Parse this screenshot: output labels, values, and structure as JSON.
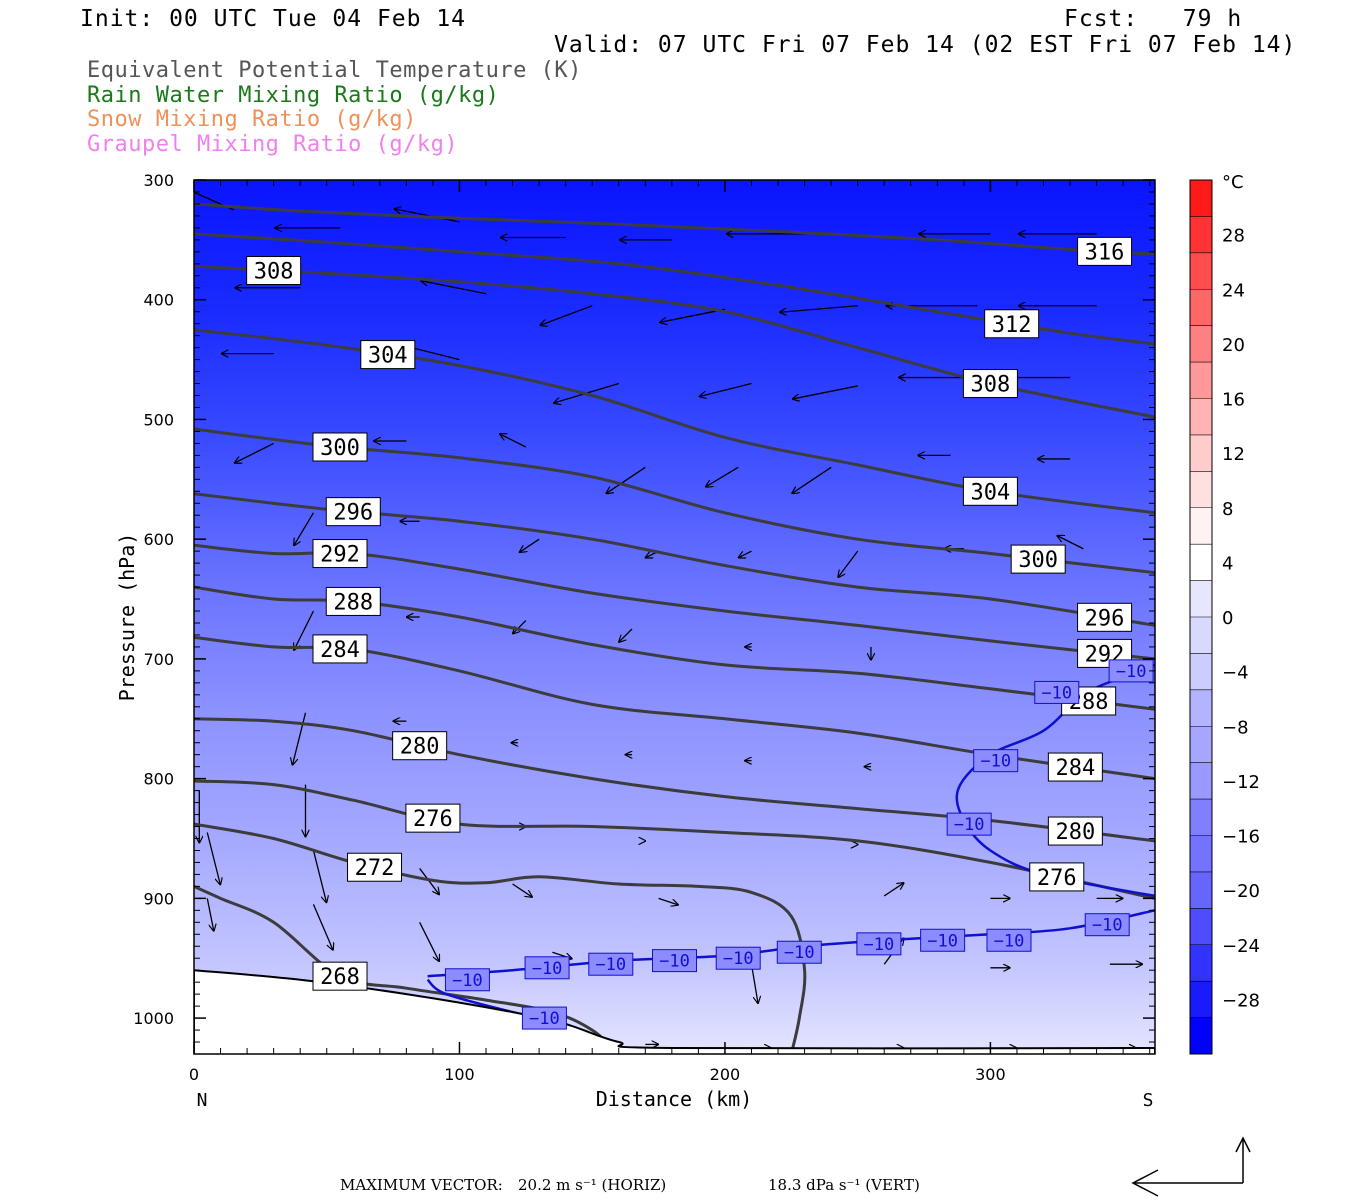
{
  "header": {
    "init": "Init: 00 UTC Tue 04 Feb 14",
    "fcst": "Fcst:   79 h",
    "valid": "Valid: 07 UTC Fri 07 Feb 14 (02 EST Fri 07 Feb 14)"
  },
  "legend": {
    "items": [
      {
        "label": "Equivalent Potential Temperature (K)",
        "color": "#555555"
      },
      {
        "label": "Rain Water Mixing Ratio (g/kg)",
        "color": "#1a7a1a"
      },
      {
        "label": "Snow Mixing Ratio (g/kg)",
        "color": "#f0905a"
      },
      {
        "label": "Graupel Mixing Ratio (g/kg)",
        "color": "#f080f0"
      }
    ]
  },
  "footer": {
    "max_vector_label": "MAXIMUM VECTOR:",
    "horiz": "20.2 m s⁻¹ (HORIZ)",
    "vert": "18.3 dPa s⁻¹ (VERT)"
  },
  "chart_data": {
    "type": "contour",
    "xlabel": "Distance (km)",
    "ylabel": "Pressure (hPa)",
    "xlim": [
      0,
      362
    ],
    "ylim": [
      1030,
      300
    ],
    "x_ticks": [
      0,
      100,
      200,
      300
    ],
    "y_ticks": [
      300,
      400,
      500,
      600,
      700,
      800,
      900,
      1000
    ],
    "x_end_labels": {
      "left": "N",
      "right": "S"
    },
    "colorbar": {
      "unit": "°C",
      "labels": [
        "28",
        "24",
        "20",
        "16",
        "12",
        "8",
        "4",
        "0",
        "−4",
        "−8",
        "−12",
        "−16",
        "−20",
        "−24",
        "−28"
      ],
      "label_values": [
        28,
        24,
        20,
        16,
        12,
        8,
        4,
        0,
        -4,
        -8,
        -12,
        -16,
        -20,
        -24,
        -28
      ],
      "colors_top_to_bottom": [
        "#ff1a1a",
        "#ff3333",
        "#ff4d4d",
        "#ff6666",
        "#ff8080",
        "#ff9999",
        "#ffb3b3",
        "#ffcccc",
        "#ffe0e0",
        "#fff2f2",
        "#ffffff",
        "#e6e6ff",
        "#d9d9ff",
        "#ccccff",
        "#b3b3ff",
        "#a6a6ff",
        "#9999ff",
        "#8080ff",
        "#7373ff",
        "#6666ff",
        "#4d4dff",
        "#3333ff",
        "#1a1aff",
        "#0000ff"
      ]
    },
    "theta_e_contours": [
      {
        "level": 316,
        "points": [
          [
            0,
            320
          ],
          [
            40,
            326
          ],
          [
            100,
            332
          ],
          [
            160,
            337
          ],
          [
            220,
            343
          ],
          [
            280,
            350
          ],
          [
            330,
            358
          ],
          [
            362,
            362
          ]
        ]
      },
      {
        "level": 312,
        "points": [
          [
            0,
            345
          ],
          [
            50,
            352
          ],
          [
            100,
            360
          ],
          [
            160,
            370
          ],
          [
            220,
            388
          ],
          [
            280,
            410
          ],
          [
            330,
            428
          ],
          [
            362,
            437
          ]
        ]
      },
      {
        "level": 308,
        "points": [
          [
            0,
            372
          ],
          [
            50,
            378
          ],
          [
            100,
            385
          ],
          [
            150,
            395
          ],
          [
            200,
            410
          ],
          [
            250,
            440
          ],
          [
            300,
            470
          ],
          [
            362,
            498
          ]
        ]
      },
      {
        "level": 304,
        "points": [
          [
            0,
            425
          ],
          [
            50,
            438
          ],
          [
            100,
            455
          ],
          [
            150,
            480
          ],
          [
            200,
            515
          ],
          [
            250,
            538
          ],
          [
            300,
            560
          ],
          [
            362,
            578
          ]
        ]
      },
      {
        "level": 300,
        "points": [
          [
            0,
            508
          ],
          [
            50,
            522
          ],
          [
            100,
            532
          ],
          [
            150,
            548
          ],
          [
            200,
            578
          ],
          [
            250,
            600
          ],
          [
            300,
            612
          ],
          [
            362,
            628
          ]
        ]
      },
      {
        "level": 296,
        "points": [
          [
            0,
            562
          ],
          [
            50,
            575
          ],
          [
            100,
            585
          ],
          [
            150,
            600
          ],
          [
            200,
            622
          ],
          [
            250,
            640
          ],
          [
            300,
            650
          ],
          [
            362,
            672
          ]
        ]
      },
      {
        "level": 292,
        "points": [
          [
            0,
            605
          ],
          [
            30,
            612
          ],
          [
            60,
            612
          ],
          [
            100,
            625
          ],
          [
            150,
            645
          ],
          [
            200,
            660
          ],
          [
            250,
            672
          ],
          [
            300,
            685
          ],
          [
            362,
            700
          ]
        ]
      },
      {
        "level": 288,
        "points": [
          [
            0,
            640
          ],
          [
            30,
            650
          ],
          [
            60,
            652
          ],
          [
            100,
            665
          ],
          [
            150,
            688
          ],
          [
            200,
            705
          ],
          [
            250,
            712
          ],
          [
            300,
            725
          ],
          [
            362,
            742
          ]
        ]
      },
      {
        "level": 284,
        "points": [
          [
            0,
            682
          ],
          [
            30,
            690
          ],
          [
            60,
            692
          ],
          [
            100,
            710
          ],
          [
            150,
            738
          ],
          [
            200,
            750
          ],
          [
            250,
            762
          ],
          [
            300,
            780
          ],
          [
            362,
            800
          ]
        ]
      },
      {
        "level": 280,
        "points": [
          [
            0,
            750
          ],
          [
            30,
            752
          ],
          [
            60,
            760
          ],
          [
            100,
            780
          ],
          [
            150,
            800
          ],
          [
            200,
            815
          ],
          [
            250,
            825
          ],
          [
            300,
            835
          ],
          [
            362,
            852
          ]
        ]
      },
      {
        "level": 276,
        "points": [
          [
            0,
            802
          ],
          [
            30,
            805
          ],
          [
            60,
            818
          ],
          [
            100,
            838
          ],
          [
            150,
            840
          ],
          [
            200,
            845
          ],
          [
            250,
            852
          ],
          [
            300,
            870
          ],
          [
            362,
            900
          ]
        ]
      },
      {
        "level": 272,
        "points": [
          [
            0,
            838
          ],
          [
            30,
            850
          ],
          [
            60,
            870
          ],
          [
            90,
            885
          ],
          [
            110,
            887
          ],
          [
            130,
            882
          ],
          [
            160,
            888
          ],
          [
            190,
            890
          ],
          [
            210,
            895
          ],
          [
            225,
            915
          ],
          [
            230,
            960
          ],
          [
            228,
            1000
          ],
          [
            225,
            1030
          ]
        ]
      },
      {
        "level": 268,
        "points": [
          [
            0,
            890
          ],
          [
            10,
            900
          ],
          [
            30,
            920
          ],
          [
            55,
            965
          ],
          [
            80,
            975
          ],
          [
            110,
            985
          ],
          [
            135,
            995
          ],
          [
            150,
            1010
          ],
          [
            160,
            1030
          ]
        ]
      }
    ],
    "temperature_minus10_contour": [
      [
        88,
        965
      ],
      [
        120,
        960
      ],
      [
        160,
        952
      ],
      [
        200,
        948
      ],
      [
        230,
        940
      ],
      [
        260,
        935
      ],
      [
        300,
        930
      ],
      [
        330,
        925
      ],
      [
        362,
        910
      ]
    ],
    "temperature_minus10_upper": [
      [
        362,
        705
      ],
      [
        350,
        715
      ],
      [
        335,
        730
      ],
      [
        320,
        760
      ],
      [
        300,
        780
      ],
      [
        288,
        808
      ],
      [
        290,
        835
      ],
      [
        300,
        860
      ],
      [
        320,
        880
      ],
      [
        362,
        898
      ]
    ],
    "temperature_minus10_lower": [
      [
        88,
        968
      ],
      [
        95,
        980
      ],
      [
        120,
        995
      ],
      [
        140,
        1005
      ],
      [
        150,
        1018
      ]
    ],
    "terrain": [
      [
        0,
        960
      ],
      [
        40,
        968
      ],
      [
        80,
        980
      ],
      [
        120,
        995
      ],
      [
        140,
        1005
      ],
      [
        160,
        1020
      ],
      [
        180,
        1025
      ],
      [
        362,
        1025
      ]
    ]
  }
}
